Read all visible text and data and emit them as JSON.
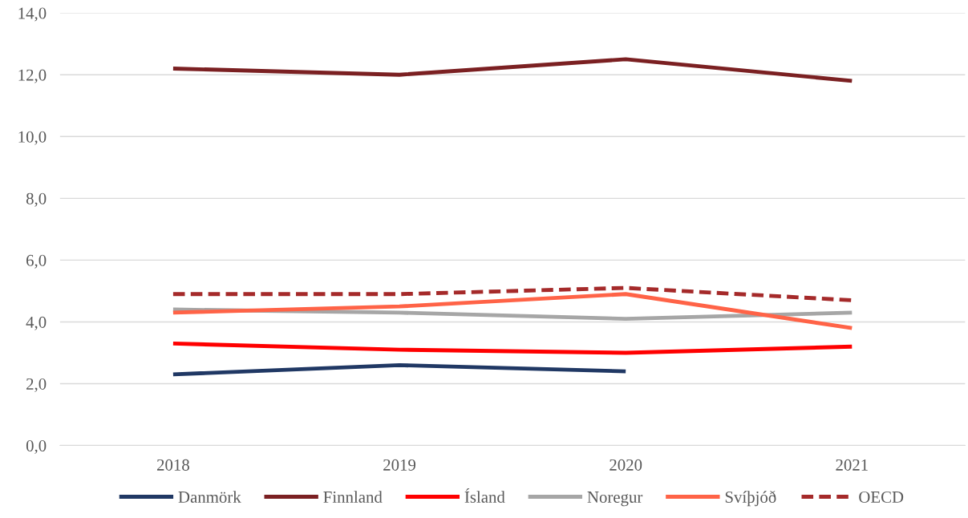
{
  "chart_data": {
    "type": "line",
    "categories": [
      "2018",
      "2019",
      "2020",
      "2021"
    ],
    "series": [
      {
        "name": "Danmörk",
        "color": "#203864",
        "values": [
          2.3,
          2.6,
          2.4,
          null
        ]
      },
      {
        "name": "Finnland",
        "color": "#7b2022",
        "values": [
          12.2,
          12.0,
          12.5,
          11.8
        ]
      },
      {
        "name": "Ísland",
        "color": "#ff0000",
        "values": [
          3.3,
          3.1,
          3.0,
          3.2
        ]
      },
      {
        "name": "Noregur",
        "color": "#a6a6a6",
        "values": [
          4.4,
          4.3,
          4.1,
          4.3
        ]
      },
      {
        "name": "Svíþjóð",
        "color": "#ff6347",
        "values": [
          4.3,
          4.5,
          4.9,
          3.8
        ]
      },
      {
        "name": "OECD",
        "color": "#a52a2a",
        "values": [
          4.9,
          4.9,
          5.1,
          4.7
        ],
        "line_style": "dashed"
      }
    ],
    "ylim": [
      0,
      14
    ],
    "yticks": [
      {
        "value": 0,
        "label": "0,0"
      },
      {
        "value": 2,
        "label": "2,0"
      },
      {
        "value": 4,
        "label": "4,0"
      },
      {
        "value": 6,
        "label": "6,0"
      },
      {
        "value": 8,
        "label": "8,0"
      },
      {
        "value": 10,
        "label": "10,0"
      },
      {
        "value": 12,
        "label": "12,0"
      },
      {
        "value": 14,
        "label": "14,0"
      }
    ],
    "grid": "y",
    "legend": "bottom",
    "marker": "none"
  }
}
